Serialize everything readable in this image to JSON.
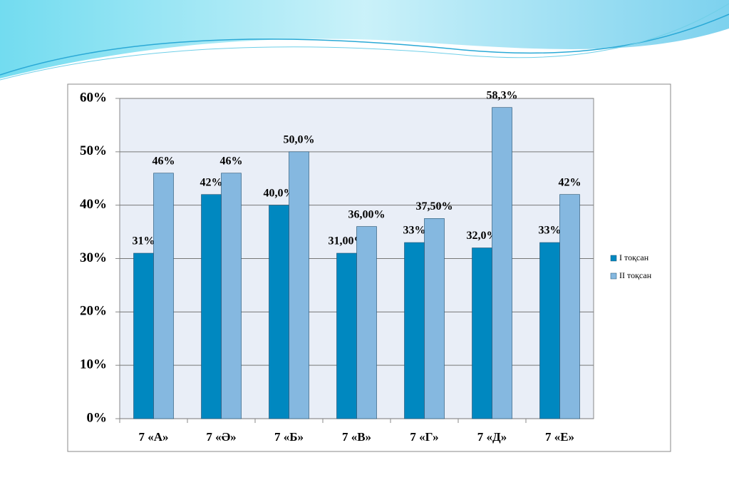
{
  "chart_data": {
    "type": "bar",
    "categories": [
      "7 «А»",
      "7 «Ә»",
      "7 «Б»",
      "7 «В»",
      "7 «Г»",
      "7 «Д»",
      "7 «Е»"
    ],
    "series": [
      {
        "name": "I тоқсан",
        "color": "#0088c0",
        "values": [
          31,
          42,
          40.0,
          31.0,
          33,
          32.0,
          33
        ],
        "value_labels": [
          "31%",
          "42%",
          "40,0%",
          "31,00%",
          "33%",
          "32,0%",
          "33%"
        ]
      },
      {
        "name": "II тоқсан",
        "color": "#85b8e0",
        "values": [
          46,
          46,
          50.0,
          36.0,
          37.5,
          58.3,
          42
        ],
        "value_labels": [
          "46%",
          "46%",
          "50,0%",
          "36,00%",
          "37,50%",
          "58,3%",
          "42%"
        ]
      }
    ],
    "ylim": [
      0,
      60
    ],
    "yticks": [
      {
        "value": 0,
        "label": "0%"
      },
      {
        "value": 10,
        "label": "10%"
      },
      {
        "value": 20,
        "label": "20%"
      },
      {
        "value": 30,
        "label": "30%"
      },
      {
        "value": 40,
        "label": "40%"
      },
      {
        "value": 50,
        "label": "50%"
      },
      {
        "value": 60,
        "label": "60%"
      }
    ],
    "grid": true,
    "legend": "right"
  }
}
